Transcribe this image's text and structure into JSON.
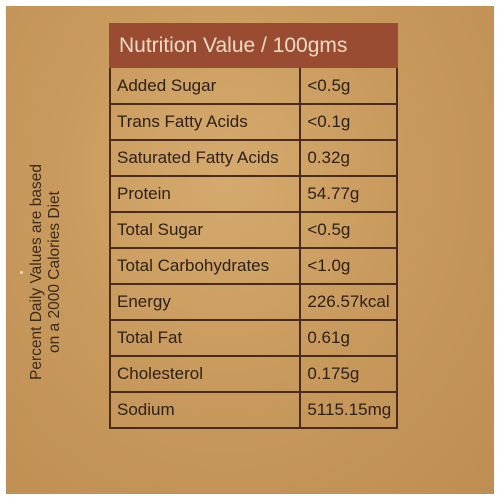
{
  "side_note": {
    "line1": "Percent Daily Values are based",
    "line2": "on a 2000 Calories Diet"
  },
  "header": {
    "title": "Nutrition Value / 100gms"
  },
  "rows": [
    {
      "name": "Added Sugar",
      "value": "<0.5g"
    },
    {
      "name": "Trans Fatty Acids",
      "value": "<0.1g"
    },
    {
      "name": "Saturated Fatty Acids",
      "value": "0.32g"
    },
    {
      "name": "Protein",
      "value": "54.77g"
    },
    {
      "name": "Total Sugar",
      "value": "<0.5g"
    },
    {
      "name": "Total Carbohydrates",
      "value": "<1.0g"
    },
    {
      "name": "Energy",
      "value": "226.57kcal"
    },
    {
      "name": "Total Fat",
      "value": "0.61g"
    },
    {
      "name": "Cholesterol",
      "value": "0.175g"
    },
    {
      "name": "Sodium",
      "value": "5115.15mg"
    }
  ],
  "colors": {
    "background": "#c99a5d",
    "header_bg": "#9a4c33",
    "header_text": "#f2dcc4",
    "border": "#4a2c1f",
    "text": "#2e2017"
  }
}
